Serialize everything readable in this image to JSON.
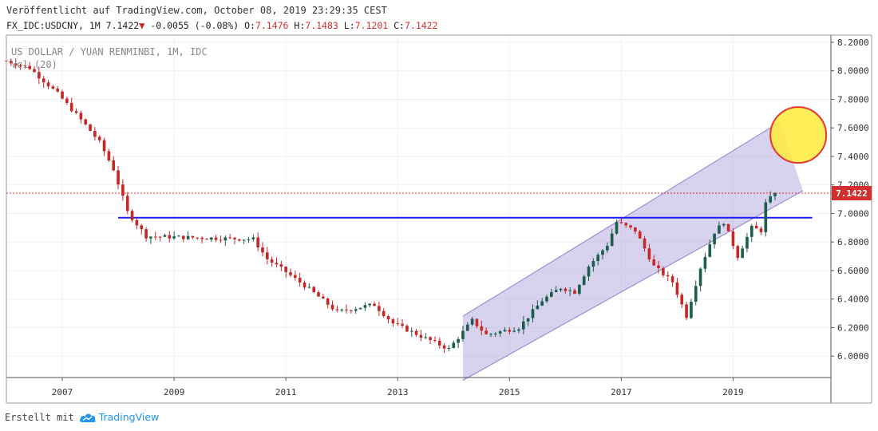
{
  "header": {
    "published": "Veröffentlicht auf TradingView.com, October 08, 2019 23:29:35 CEST",
    "symbol": "FX_IDC:USDCNY, 1M",
    "last": "7.1422",
    "change": "-0.0055 (-0.08%)",
    "o_label": "O:",
    "o_value": "7.1476",
    "h_label": "H:",
    "h_value": "7.1483",
    "l_label": "L:",
    "l_value": "7.1201",
    "c_label": "C:",
    "c_value": "7.1422"
  },
  "overlay": {
    "title": "US DOLLAR / YUAN RENMINBI, 1M, IDC",
    "volume": "Vol (20)"
  },
  "footer": {
    "made_with": "Erstellt mit",
    "brand": "TradingView"
  },
  "colors": {
    "up": "#1b5e4b",
    "down": "#c62828",
    "support_line": "#1a1aff",
    "channel_fill": "#b7addf",
    "channel_border": "#9c8fd6",
    "circle_fill": "#ffeb3b",
    "circle_border": "#e53935",
    "price_tag": "#d32f2f"
  },
  "chart_data": {
    "type": "candlestick",
    "title": "US DOLLAR / YUAN RENMINBI, 1M, IDC",
    "x_ticks": [
      "2007",
      "2009",
      "2011",
      "2013",
      "2015",
      "2017",
      "2019"
    ],
    "y_ticks": [
      "6.0000",
      "6.2000",
      "6.4000",
      "6.6000",
      "6.8000",
      "7.0000",
      "7.2000",
      "7.4000",
      "7.6000",
      "7.8000",
      "8.0000",
      "8.2000"
    ],
    "ylim": [
      5.85,
      8.25
    ],
    "xlim": [
      "2006-01",
      "2020-10"
    ],
    "last_price_label": "7.1422",
    "price_path": [
      [
        "2006-01",
        8.07
      ],
      [
        "2006-06",
        8.02
      ],
      [
        "2006-12",
        7.84
      ],
      [
        "2007-06",
        7.62
      ],
      [
        "2007-09",
        7.5
      ],
      [
        "2007-12",
        7.31
      ],
      [
        "2008-03",
        7.01
      ],
      [
        "2008-07",
        6.84
      ],
      [
        "2009-06",
        6.83
      ],
      [
        "2010-06",
        6.82
      ],
      [
        "2010-09",
        6.68
      ],
      [
        "2011-01",
        6.59
      ],
      [
        "2011-06",
        6.47
      ],
      [
        "2011-12",
        6.31
      ],
      [
        "2012-06",
        6.35
      ],
      [
        "2012-08",
        6.36
      ],
      [
        "2012-12",
        6.23
      ],
      [
        "2013-06",
        6.14
      ],
      [
        "2013-12",
        6.05
      ],
      [
        "2014-02",
        6.13
      ],
      [
        "2014-05",
        6.25
      ],
      [
        "2014-08",
        6.15
      ],
      [
        "2015-03",
        6.2
      ],
      [
        "2015-08",
        6.39
      ],
      [
        "2015-12",
        6.48
      ],
      [
        "2016-03",
        6.45
      ],
      [
        "2016-06",
        6.63
      ],
      [
        "2016-10",
        6.78
      ],
      [
        "2016-12",
        6.94
      ],
      [
        "2017-04",
        6.88
      ],
      [
        "2017-08",
        6.63
      ],
      [
        "2017-12",
        6.52
      ],
      [
        "2018-03",
        6.28
      ],
      [
        "2018-06",
        6.62
      ],
      [
        "2018-09",
        6.87
      ],
      [
        "2018-11",
        6.94
      ],
      [
        "2019-02",
        6.7
      ],
      [
        "2019-05",
        6.9
      ],
      [
        "2019-07",
        6.88
      ],
      [
        "2019-08",
        7.07
      ],
      [
        "2019-10",
        7.1422
      ]
    ],
    "annotations": {
      "support_level": 6.97,
      "support_range": [
        "2008-01",
        "2020-06"
      ],
      "channel_lower": [
        [
          "2014-03",
          5.83
        ],
        [
          "2020-04",
          7.16
        ]
      ],
      "channel_upper": [
        [
          "2014-03",
          6.28
        ],
        [
          "2019-11",
          7.64
        ]
      ],
      "circle_center": [
        "2020-03",
        7.55
      ],
      "last_price_line": 7.1422
    },
    "grid": true,
    "legend": "none"
  }
}
